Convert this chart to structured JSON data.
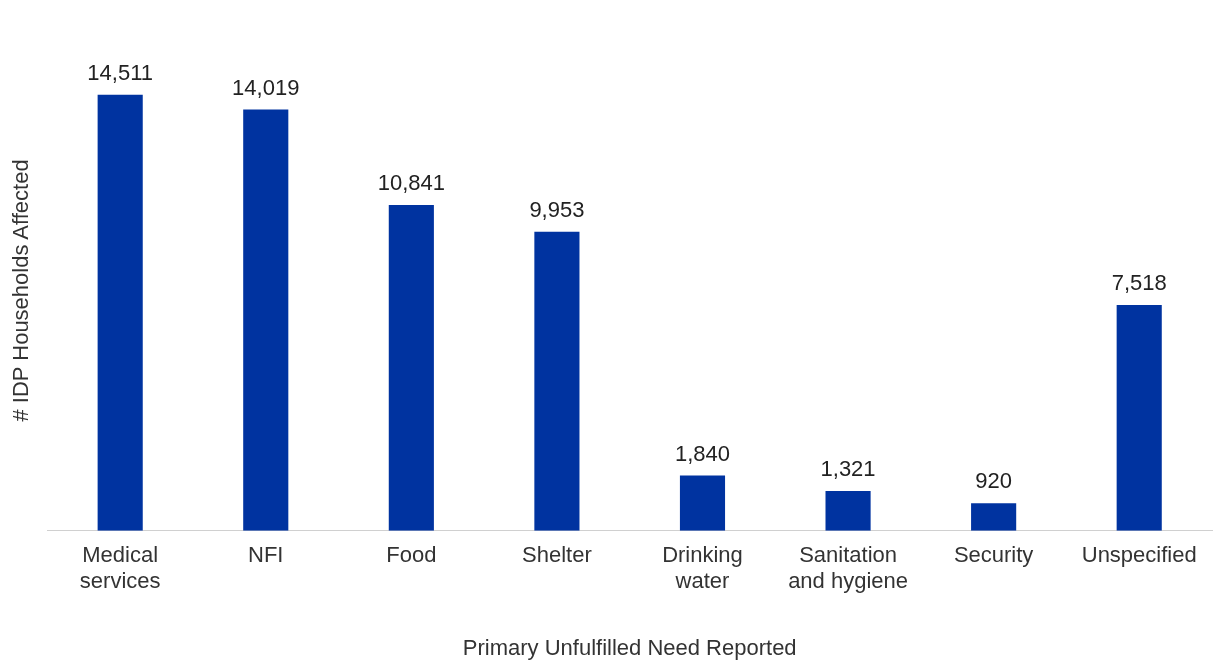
{
  "chart_data": {
    "type": "bar",
    "xlabel": "Primary Unfulfilled Need Reported",
    "ylabel": "# IDP Households Affected",
    "categories": [
      "Medical services",
      "NFI",
      "Food",
      "Shelter",
      "Drinking water",
      "Sanitation and hygiene",
      "Security",
      "Unspecified"
    ],
    "values": [
      14511,
      14019,
      10841,
      9953,
      1840,
      1321,
      920,
      7518
    ],
    "value_labels": [
      "14,511",
      "14,019",
      "10,841",
      "9,953",
      "1,840",
      "1,321",
      "920",
      "7,518"
    ],
    "color": "#0033a0",
    "grid": false,
    "legend": false,
    "tick_labels": "x"
  }
}
